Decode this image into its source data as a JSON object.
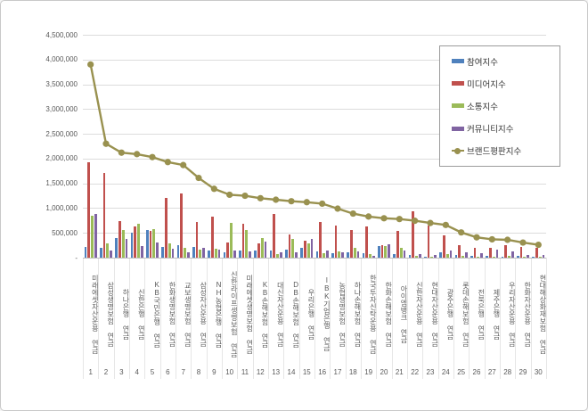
{
  "chart_data": {
    "type": "bar+line",
    "title": "",
    "ylim": [
      0,
      4500000
    ],
    "ytick_step": 500000,
    "grid": true,
    "legend_position": "upper-right-overlay",
    "yticks": [
      {
        "value": 0,
        "label": "-"
      },
      {
        "value": 500000,
        "label": "500,000"
      },
      {
        "value": 1000000,
        "label": "1,000,000"
      },
      {
        "value": 1500000,
        "label": "1,500,000"
      },
      {
        "value": 2000000,
        "label": "2,000,000"
      },
      {
        "value": 2500000,
        "label": "2,500,000"
      },
      {
        "value": 3000000,
        "label": "3,000,000"
      },
      {
        "value": 3500000,
        "label": "3,500,000"
      },
      {
        "value": 4000000,
        "label": "4,000,000"
      },
      {
        "value": 4500000,
        "label": "4,500,000"
      }
    ],
    "legend": [
      {
        "label": "참여지수",
        "color": "#4F81BD",
        "kind": "bar"
      },
      {
        "label": "미디어지수",
        "color": "#C0504D",
        "kind": "bar"
      },
      {
        "label": "소통지수",
        "color": "#9BBB59",
        "kind": "bar"
      },
      {
        "label": "커뮤니티지수",
        "color": "#8064A2",
        "kind": "bar"
      },
      {
        "label": "브랜드평판지수",
        "color": "#99914F",
        "kind": "line"
      }
    ],
    "line_series_name": "브랜드평판지수",
    "line_color": "#99914F",
    "categories": [
      {
        "rank": 1,
        "label": "미래에셋자산운용 연금",
        "values": [
          220000,
          1920000,
          850000,
          880000
        ],
        "brand_index": 3900000
      },
      {
        "rank": 2,
        "label": "삼성생명보험 연금",
        "values": [
          205000,
          1710000,
          290000,
          150000
        ],
        "brand_index": 2300000
      },
      {
        "rank": 3,
        "label": "하나은행 연금",
        "values": [
          405000,
          730000,
          555000,
          385000
        ],
        "brand_index": 2120000
      },
      {
        "rank": 4,
        "label": "신한은행 연금",
        "values": [
          505000,
          625000,
          685000,
          230000
        ],
        "brand_index": 2090000
      },
      {
        "rank": 5,
        "label": "KB국민은행 연금",
        "values": [
          555000,
          545000,
          575000,
          310000
        ],
        "brand_index": 2030000
      },
      {
        "rank": 6,
        "label": "한화생명보험 연금",
        "values": [
          225000,
          1215000,
          295000,
          180000
        ],
        "brand_index": 1930000
      },
      {
        "rank": 7,
        "label": "교보생명보험 연금",
        "values": [
          250000,
          1290000,
          190000,
          105000
        ],
        "brand_index": 1870000
      },
      {
        "rank": 8,
        "label": "삼성자산운용 연금",
        "values": [
          215000,
          720000,
          160000,
          190000
        ],
        "brand_index": 1610000
      },
      {
        "rank": 9,
        "label": "NH농협은행 연금",
        "values": [
          140000,
          830000,
          175000,
          165000
        ],
        "brand_index": 1390000
      },
      {
        "rank": 10,
        "label": "신한라이프생명보험 연금",
        "values": [
          105000,
          310000,
          705000,
          140000
        ],
        "brand_index": 1270000
      },
      {
        "rank": 11,
        "label": "미래에셋생명보험 연금",
        "values": [
          150000,
          690000,
          565000,
          135000
        ],
        "brand_index": 1250000
      },
      {
        "rank": 12,
        "label": "KB손해보험 연금",
        "values": [
          145000,
          290000,
          390000,
          325000
        ],
        "brand_index": 1200000
      },
      {
        "rank": 13,
        "label": "대신자산운용 연금",
        "values": [
          145000,
          875000,
          70000,
          115000
        ],
        "brand_index": 1170000
      },
      {
        "rank": 14,
        "label": "DB손해보험 연금",
        "values": [
          165000,
          465000,
          375000,
          115000
        ],
        "brand_index": 1140000
      },
      {
        "rank": 15,
        "label": "우리은행 연금",
        "values": [
          195000,
          340000,
          280000,
          375000
        ],
        "brand_index": 1120000
      },
      {
        "rank": 16,
        "label": "IBK기업은행 연금",
        "values": [
          135000,
          720000,
          85000,
          145000
        ],
        "brand_index": 1090000
      },
      {
        "rank": 17,
        "label": "농협생명보험 연금",
        "values": [
          90000,
          640000,
          120000,
          100000
        ],
        "brand_index": 990000
      },
      {
        "rank": 18,
        "label": "하나손해보험 연금",
        "values": [
          105000,
          560000,
          195000,
          130000
        ],
        "brand_index": 890000
      },
      {
        "rank": 19,
        "label": "한국투자신탁운용 연금",
        "values": [
          85000,
          630000,
          70000,
          45000
        ],
        "brand_index": 830000
      },
      {
        "rank": 20,
        "label": "한화손해보험 연금",
        "values": [
          235000,
          250000,
          235000,
          265000
        ],
        "brand_index": 795000
      },
      {
        "rank": 21,
        "label": "아이엠뱅크 연금",
        "values": [
          75000,
          540000,
          205000,
          140000
        ],
        "brand_index": 780000
      },
      {
        "rank": 22,
        "label": "신한자산운용 연금",
        "values": [
          55000,
          940000,
          30000,
          75000
        ],
        "brand_index": 745000
      },
      {
        "rank": 23,
        "label": "현대자산운용 연금",
        "values": [
          25000,
          650000,
          15000,
          55000
        ],
        "brand_index": 700000
      },
      {
        "rank": 24,
        "label": "광주은행 연금",
        "values": [
          105000,
          450000,
          65000,
          145000
        ],
        "brand_index": 660000
      },
      {
        "rank": 25,
        "label": "롯데손해보험 연금",
        "values": [
          55000,
          250000,
          40000,
          105000
        ],
        "brand_index": 510000
      },
      {
        "rank": 26,
        "label": "전북은행 연금",
        "values": [
          30000,
          205000,
          25000,
          95000
        ],
        "brand_index": 410000
      },
      {
        "rank": 27,
        "label": "제주은행 연금",
        "values": [
          35000,
          195000,
          25000,
          155000
        ],
        "brand_index": 370000
      },
      {
        "rank": 28,
        "label": "우리자산운용 연금",
        "values": [
          25000,
          250000,
          35000,
          125000
        ],
        "brand_index": 360000
      },
      {
        "rank": 29,
        "label": "한화자산운용 연금",
        "values": [
          40000,
          225000,
          25000,
          55000
        ],
        "brand_index": 305000
      },
      {
        "rank": 30,
        "label": "현대해상화재보험 연금",
        "values": [
          25000,
          190000,
          20000,
          55000
        ],
        "brand_index": 260000
      }
    ]
  }
}
